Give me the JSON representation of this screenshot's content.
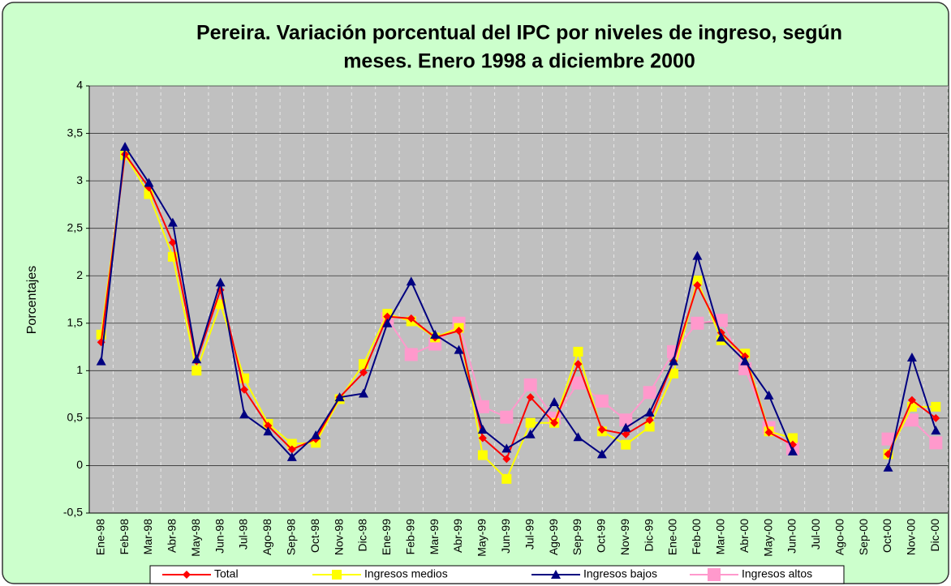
{
  "chart_data": {
    "type": "line",
    "title": [
      "Pereira.  Variación porcentual del IPC por niveles de ingreso, según",
      "meses.  Enero 1998 a diciembre 2000"
    ],
    "y_label": "Porcentajes",
    "categories": [
      "Ene-98",
      "Feb-98",
      "Mar-98",
      "Abr-98",
      "May-98",
      "Jun-98",
      "Jul-98",
      "Ago-98",
      "Sep-98",
      "Oct-98",
      "Nov-98",
      "Dic-98",
      "Ene-99",
      "Feb-99",
      "Mar-99",
      "Abr-99",
      "May-99",
      "Jun-99",
      "Jul-99",
      "Ago-99",
      "Sep-99",
      "Oct-99",
      "Nov-99",
      "Dic-99",
      "Ene-00",
      "Feb-00",
      "Mar-00",
      "Abr-00",
      "May-00",
      "Jun-00",
      "Jul-00",
      "Ago-00",
      "Sep-00",
      "Oct-00",
      "Nov-00",
      "Dic-00"
    ],
    "series": [
      {
        "name": "Total",
        "color": "#ff0000",
        "marker": "diamond",
        "values": [
          1.3,
          3.28,
          2.93,
          2.35,
          1.1,
          1.85,
          0.8,
          0.42,
          0.17,
          0.28,
          0.72,
          0.98,
          1.57,
          1.55,
          1.35,
          1.42,
          0.29,
          0.07,
          0.72,
          0.45,
          1.07,
          0.38,
          0.33,
          0.48,
          1.1,
          1.9,
          1.4,
          1.15,
          0.35,
          0.22,
          null,
          null,
          null,
          0.12,
          0.69,
          0.5
        ]
      },
      {
        "name": "Ingresos medios",
        "color": "#ffff00",
        "marker": "square",
        "values": [
          1.38,
          3.27,
          2.86,
          2.2,
          1.0,
          1.7,
          0.92,
          0.44,
          0.23,
          0.24,
          0.7,
          1.07,
          1.6,
          1.52,
          1.35,
          1.45,
          0.11,
          -0.14,
          0.45,
          0.45,
          1.2,
          0.36,
          0.22,
          0.41,
          0.97,
          1.95,
          1.32,
          1.18,
          0.36,
          0.29,
          null,
          null,
          null,
          0.12,
          0.62,
          0.62
        ]
      },
      {
        "name": "Ingresos bajos",
        "color": "#000080",
        "marker": "triangle",
        "values": [
          1.1,
          3.36,
          2.98,
          2.56,
          1.12,
          1.93,
          0.54,
          0.36,
          0.09,
          0.32,
          0.72,
          0.76,
          1.5,
          1.94,
          1.38,
          1.22,
          0.38,
          0.18,
          0.33,
          0.67,
          0.3,
          0.12,
          0.4,
          0.56,
          1.1,
          2.21,
          1.35,
          1.1,
          0.74,
          0.15,
          null,
          null,
          null,
          -0.02,
          1.14,
          0.37
        ]
      },
      {
        "name": "Ingresos altos",
        "color": "#ff99cc",
        "marker": "bigsquare",
        "values": [
          null,
          null,
          null,
          null,
          null,
          null,
          null,
          null,
          null,
          null,
          null,
          null,
          1.55,
          1.17,
          1.28,
          1.5,
          0.62,
          0.51,
          0.85,
          0.5,
          0.87,
          0.68,
          0.48,
          0.77,
          1.2,
          1.5,
          1.53,
          1.02,
          0.4,
          0.18,
          null,
          null,
          null,
          0.28,
          0.48,
          0.24
        ]
      }
    ],
    "ylim": [
      -0.5,
      4
    ],
    "yticks": [
      {
        "value": -0.5,
        "label": "-0,5"
      },
      0,
      {
        "value": 0.5,
        "label": "0,5"
      },
      1,
      {
        "value": 1.5,
        "label": "1,5"
      },
      2,
      {
        "value": 2.5,
        "label": "2,5"
      },
      3,
      {
        "value": 3.5,
        "label": "3,5"
      },
      4
    ],
    "grid": true,
    "legend": "bottom"
  }
}
